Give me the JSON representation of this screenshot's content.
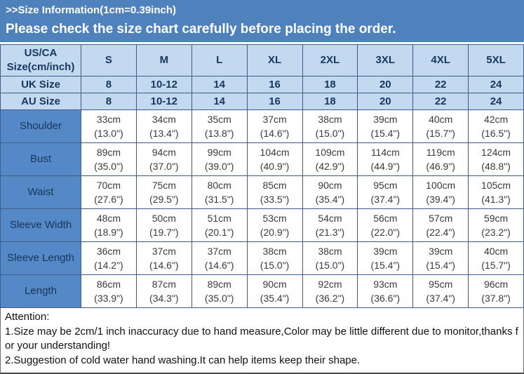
{
  "banner": {
    "title": ">>Size Information(1cm=0.39inch)",
    "subtitle": "Please check the size chart carefully before placing the order."
  },
  "colors": {
    "banner_bg": "#4F81BD",
    "banner_text": "#FFFFFF",
    "header_row_bg": "#C3D9F0",
    "label_column_bg": "#5588C6",
    "grid_border": "#3E5C85",
    "header_text": "#17365D",
    "cell_text": "#3A3A3A"
  },
  "table": {
    "corner": {
      "line1": "US/CA",
      "line2": "Size(cm/inch)"
    },
    "size_columns": [
      "S",
      "M",
      "L",
      "XL",
      "2XL",
      "3XL",
      "4XL",
      "5XL"
    ],
    "size_rows": [
      {
        "label": "UK Size",
        "values": [
          "8",
          "10-12",
          "14",
          "16",
          "18",
          "20",
          "22",
          "24"
        ]
      },
      {
        "label": "AU Size",
        "values": [
          "8",
          "10-12",
          "14",
          "16",
          "18",
          "20",
          "22",
          "24"
        ]
      }
    ],
    "measurement_rows": [
      {
        "label": "Shoulder",
        "cm": [
          "33cm",
          "34cm",
          "35cm",
          "37cm",
          "38cm",
          "39cm",
          "40cm",
          "42cm"
        ],
        "inch": [
          "(13.0\")",
          "(13.4\")",
          "(13.8\")",
          "(14.6\")",
          "(15.0\")",
          "(15.4\")",
          "(15.7\")",
          "(16.5\")"
        ]
      },
      {
        "label": "Bust",
        "cm": [
          "89cm",
          "94cm",
          "99cm",
          "104cm",
          "109cm",
          "114cm",
          "119cm",
          "124cm"
        ],
        "inch": [
          "(35.0\")",
          "(37.0\")",
          "(39.0\")",
          "(40.9\")",
          "(42.9\")",
          "(44.9\")",
          "(46.9\")",
          "(48.8\")"
        ]
      },
      {
        "label": "Waist",
        "cm": [
          "70cm",
          "75cm",
          "80cm",
          "85cm",
          "90cm",
          "95cm",
          "100cm",
          "105cm"
        ],
        "inch": [
          "(27.6\")",
          "(29.5\")",
          "(31.5\")",
          "(33.5\")",
          "(35.4\")",
          "(37.4\")",
          "(39.4\")",
          "(41.3\")"
        ]
      },
      {
        "label": "Sleeve Width",
        "cm": [
          "48cm",
          "50cm",
          "51cm",
          "53cm",
          "54cm",
          "56cm",
          "57cm",
          "59cm"
        ],
        "inch": [
          "(18.9\")",
          "(19.7\")",
          "(20.1\")",
          "(20.9\")",
          "(21.3\")",
          "(22.0\")",
          "(22.4\")",
          "(23.2\")"
        ]
      },
      {
        "label": "Sleeve Length",
        "cm": [
          "36cm",
          "37cm",
          "37cm",
          "38cm",
          "38cm",
          "39cm",
          "39cm",
          "40cm"
        ],
        "inch": [
          "(14.2\")",
          "(14.6\")",
          "(14.6\")",
          "(15.0\")",
          "(15.0\")",
          "(15.4\")",
          "(15.4\")",
          "(15.7\")"
        ]
      },
      {
        "label": "Length",
        "cm": [
          "86cm",
          "87cm",
          "89cm",
          "90cm",
          "92cm",
          "93cm",
          "95cm",
          "96cm"
        ],
        "inch": [
          "(33.9\")",
          "(34.3\")",
          "(35.0\")",
          "(35.4\")",
          "(36.2\")",
          "(36.6\")",
          "(37.4\")",
          "(37.8\")"
        ]
      }
    ]
  },
  "attention": {
    "heading": "Attention:",
    "lines": [
      "1.Size may be 2cm/1 inch inaccuracy due to hand measure,Color may be little different due to monitor,thanks for your understanding!",
      "2.Suggestion of cold water hand washing.It can help items keep their shape."
    ]
  }
}
